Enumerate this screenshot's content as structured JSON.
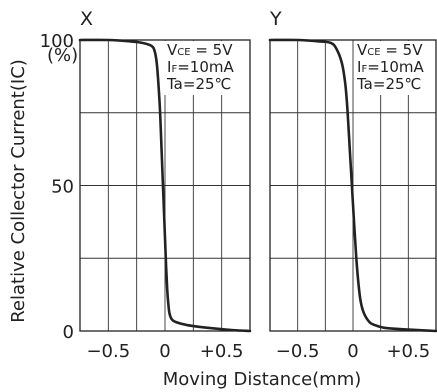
{
  "chart_data": [
    {
      "type": "line",
      "title": "X",
      "unit_label": "(%)",
      "xlabel": "Moving Distance(mm)",
      "ylabel": "Relative Collector Current(IC)",
      "x_ticks": [
        "−0.5",
        "0",
        "+0.5"
      ],
      "y_ticks": [
        "0",
        "50",
        "100"
      ],
      "xlim": [
        -0.75,
        0.75
      ],
      "ylim": [
        0,
        100
      ],
      "grid": true,
      "conditions": [
        "VCE = 5V",
        "IF=10mA",
        "Ta=25℃"
      ],
      "series": [
        {
          "x": [
            -0.75,
            -0.5,
            -0.3,
            -0.2,
            -0.12,
            -0.09,
            -0.07,
            -0.05,
            -0.04,
            -0.03,
            -0.02,
            -0.01,
            0.0,
            0.01,
            0.02,
            0.03,
            0.04,
            0.06,
            0.1,
            0.2,
            0.4,
            0.6,
            0.75
          ],
          "y": [
            100,
            100,
            99.5,
            99,
            98,
            96,
            91,
            80,
            72,
            62,
            52,
            42,
            32,
            22,
            14,
            9,
            6,
            4,
            3,
            2,
            1,
            0.3,
            0
          ]
        }
      ]
    },
    {
      "type": "line",
      "title": "Y",
      "xlabel": "Moving Distance(mm)",
      "x_ticks": [
        "−0.5",
        "0",
        "+0.5"
      ],
      "xlim": [
        -0.75,
        0.75
      ],
      "ylim": [
        0,
        100
      ],
      "grid": true,
      "conditions": [
        "VCE = 5V",
        "IF=10mA",
        "Ta=25℃"
      ],
      "series": [
        {
          "x": [
            -0.75,
            -0.5,
            -0.3,
            -0.2,
            -0.15,
            -0.1,
            -0.07,
            -0.05,
            -0.03,
            -0.01,
            0.01,
            0.03,
            0.05,
            0.07,
            0.1,
            0.15,
            0.2,
            0.3,
            0.5,
            0.75
          ],
          "y": [
            100,
            100,
            99.5,
            99,
            97,
            92,
            85,
            76,
            63,
            50,
            37,
            25,
            16,
            10,
            6,
            3,
            2,
            1,
            0.5,
            0
          ]
        }
      ]
    }
  ]
}
